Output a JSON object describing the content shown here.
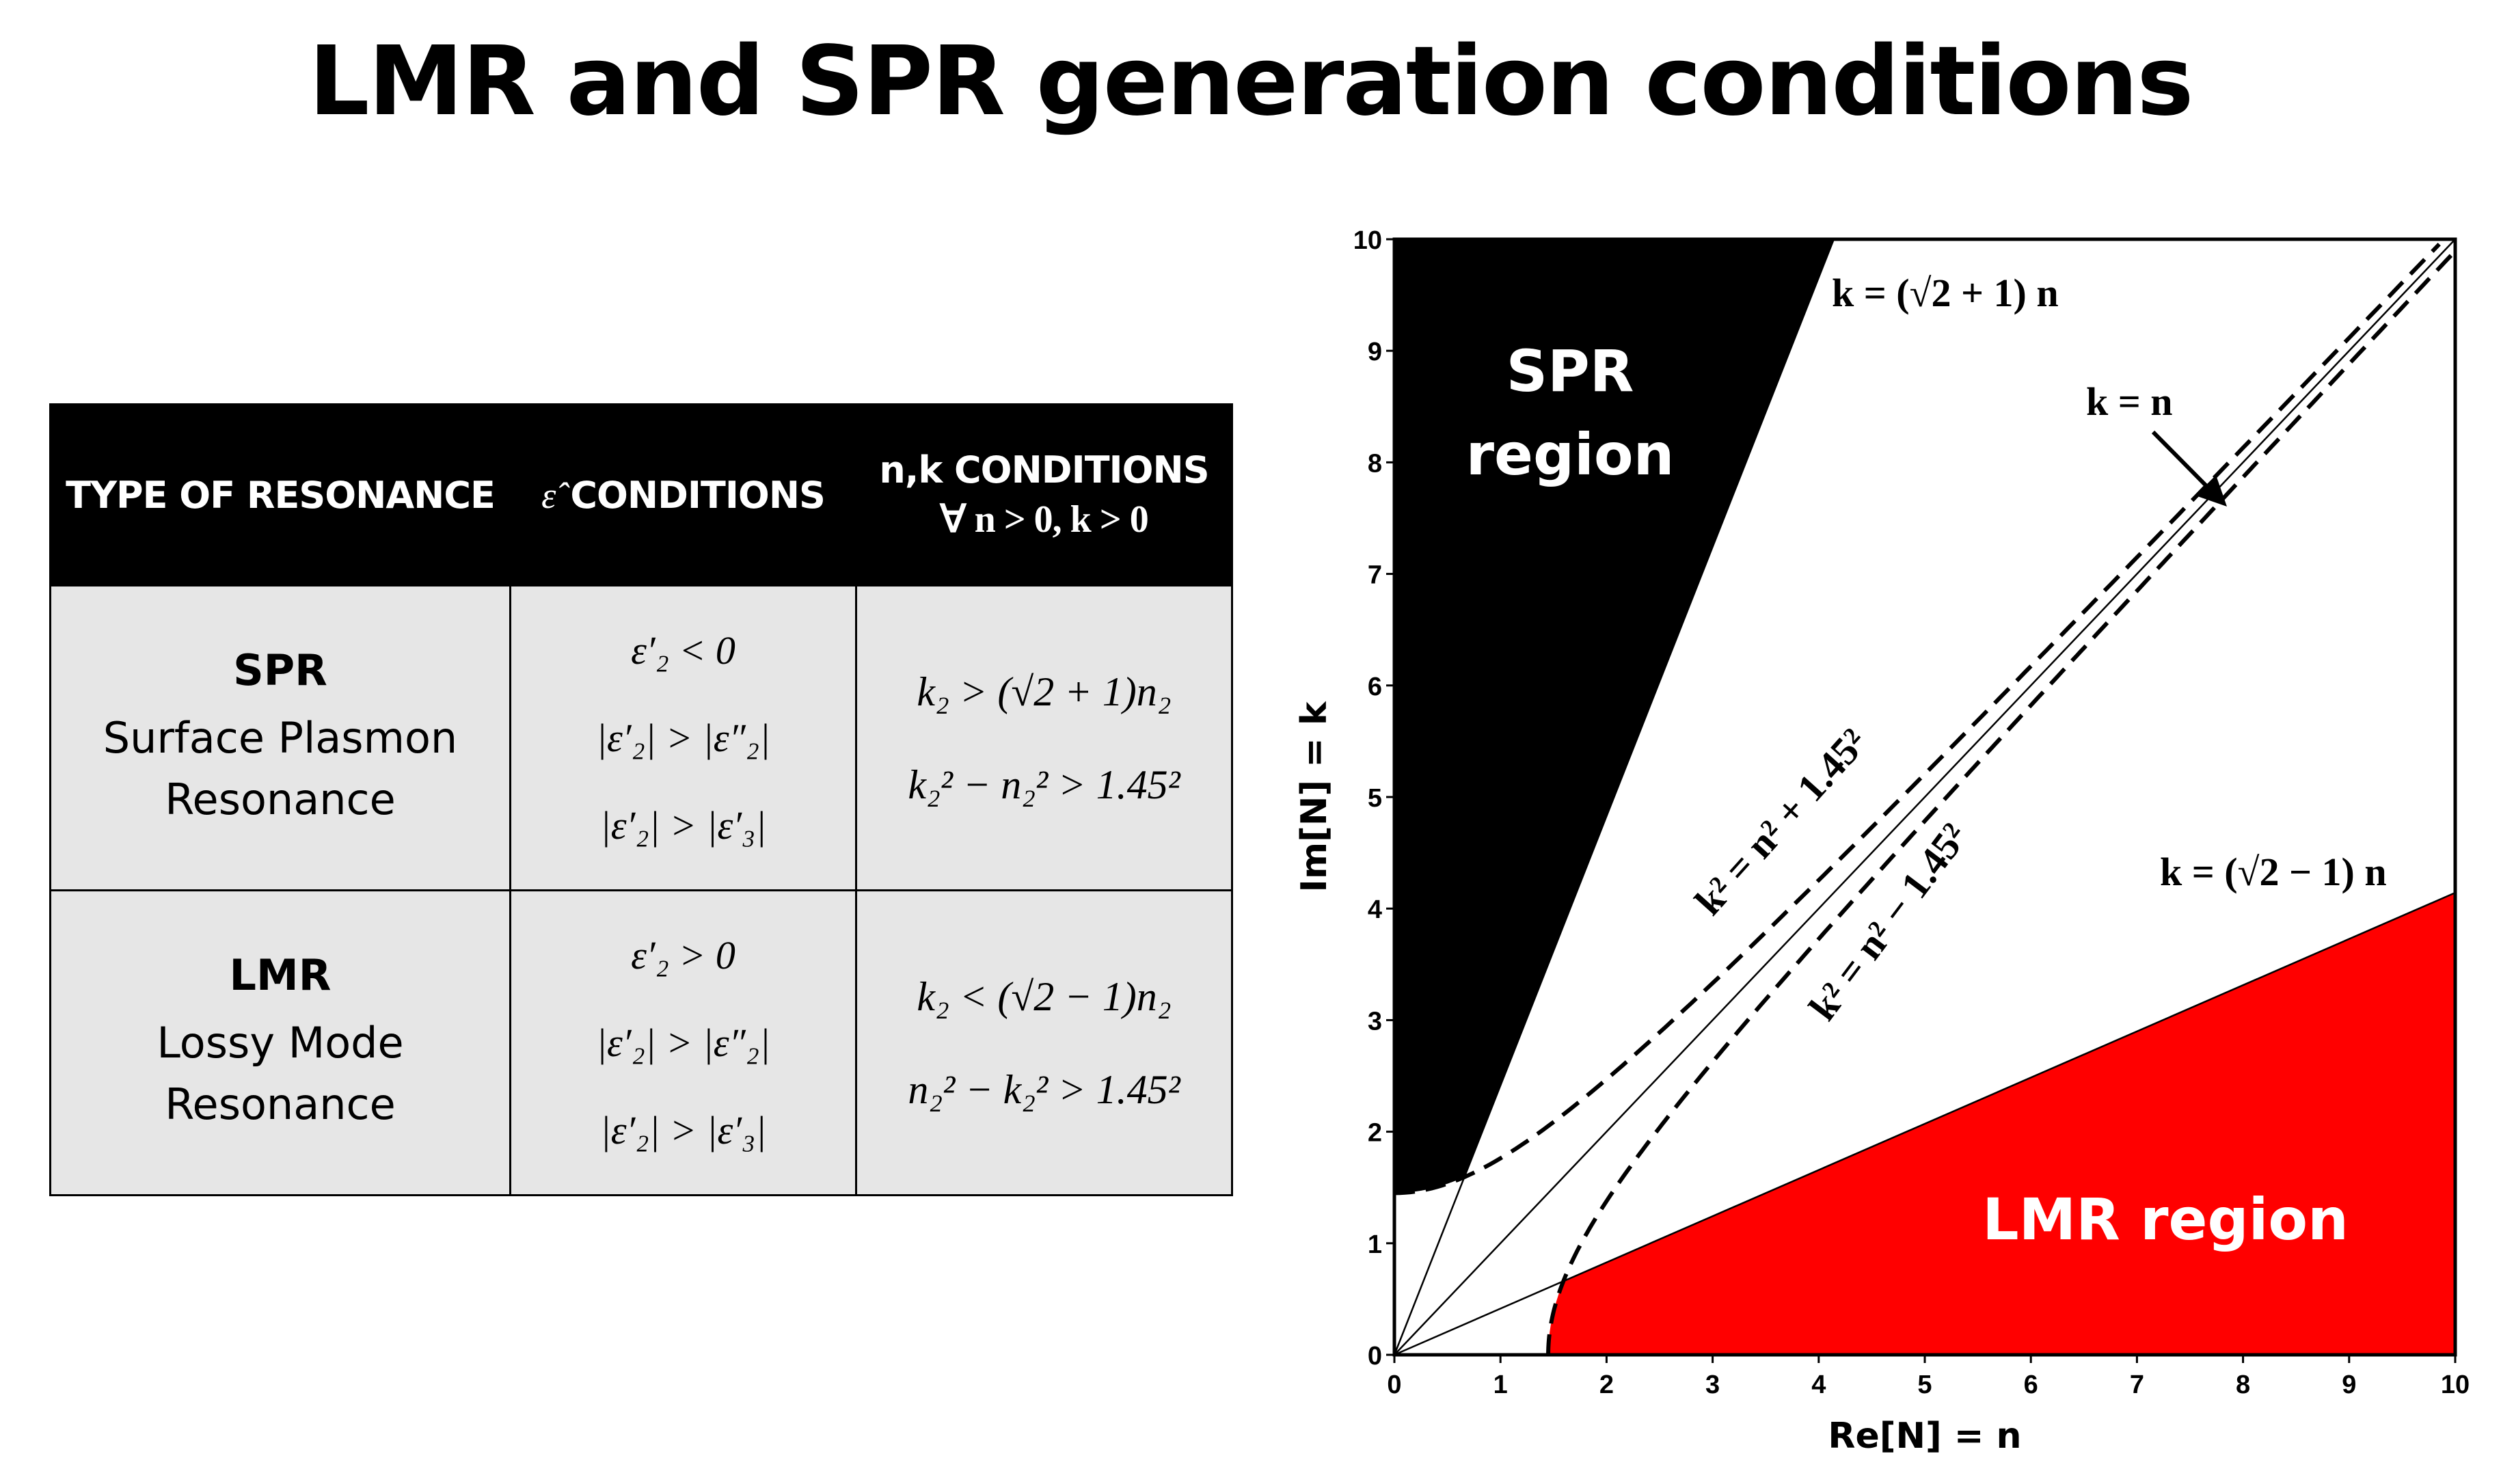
{
  "title": "LMR and SPR generation conditions",
  "table": {
    "headers": {
      "type": "TYPE OF RESONANCE",
      "eps_symbol": "ε̂",
      "eps_label": "CONDITIONS",
      "nk_label": "n,k CONDITIONS",
      "nk_sub": "∀ n > 0, k > 0"
    },
    "rows": [
      {
        "name": "SPR",
        "desc1": "Surface Plasmon",
        "desc2": "Resonance",
        "eps": [
          "ε′₂ < 0",
          "|ε′₂| > |ε″₂|",
          "|ε′₂| > |ε′₃|"
        ],
        "nk": [
          "k₂ > (√2 + 1)n₂",
          "k₂² − n₂² > 1.45²"
        ]
      },
      {
        "name": "LMR",
        "desc1": "Lossy Mode",
        "desc2": "Resonance",
        "eps": [
          "ε′₂ > 0",
          "|ε′₂| > |ε″₂|",
          "|ε′₂| > |ε′₃|"
        ],
        "nk": [
          "k₂ < (√2 − 1)n₂",
          "n₂² − k₂² > 1.45²"
        ]
      }
    ]
  },
  "chart_data": {
    "type": "area",
    "xlabel": "Re[N] = n",
    "ylabel": "Im[N] = k",
    "xlim": [
      0,
      10
    ],
    "ylim": [
      0,
      10
    ],
    "xticks": [
      "0",
      "1",
      "2",
      "3",
      "4",
      "5",
      "6",
      "7",
      "8",
      "9",
      "10"
    ],
    "yticks": [
      "0",
      "1",
      "2",
      "3",
      "4",
      "5",
      "6",
      "7",
      "8",
      "9",
      "10"
    ],
    "n0": 1.45,
    "lines": [
      {
        "label": "k = (√2 + 1) n",
        "slope": 2.4142
      },
      {
        "label": "k = n",
        "slope": 1
      },
      {
        "label": "k = (√2 − 1) n",
        "slope": 0.4142
      }
    ],
    "curves": [
      {
        "label": "k² = n² + 1.45²",
        "style": "dashed"
      },
      {
        "label": "k² = n² − 1.45²",
        "style": "dashed"
      }
    ],
    "regions": [
      {
        "label": "SPR region",
        "color": "#000000"
      },
      {
        "label": "LMR region",
        "color": "#ff0000"
      }
    ]
  }
}
